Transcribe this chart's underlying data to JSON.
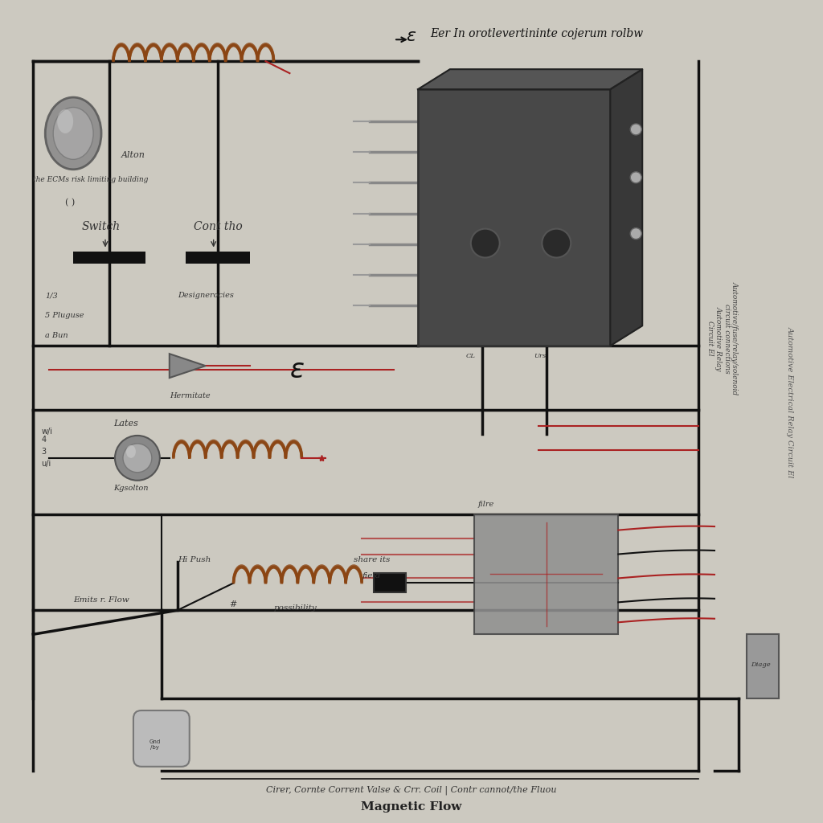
{
  "bg_color": "#ccc9c0",
  "wire_black": "#111111",
  "wire_red": "#aa2222",
  "coil_color": "#8B4513",
  "relay_top_color": "#404040",
  "relay_bot_color": "#909090",
  "label_color": "#333333",
  "title_top": "Eer In orotlevertininte cojerum rolbw",
  "title_bottom": "Cirer, Cornte Corrent Valse & Crr. Coil | Contr cannot/the Fluou",
  "subtitle": "Magnetic Flow",
  "right_text": "Automotive Electrical Relay Circuit El"
}
